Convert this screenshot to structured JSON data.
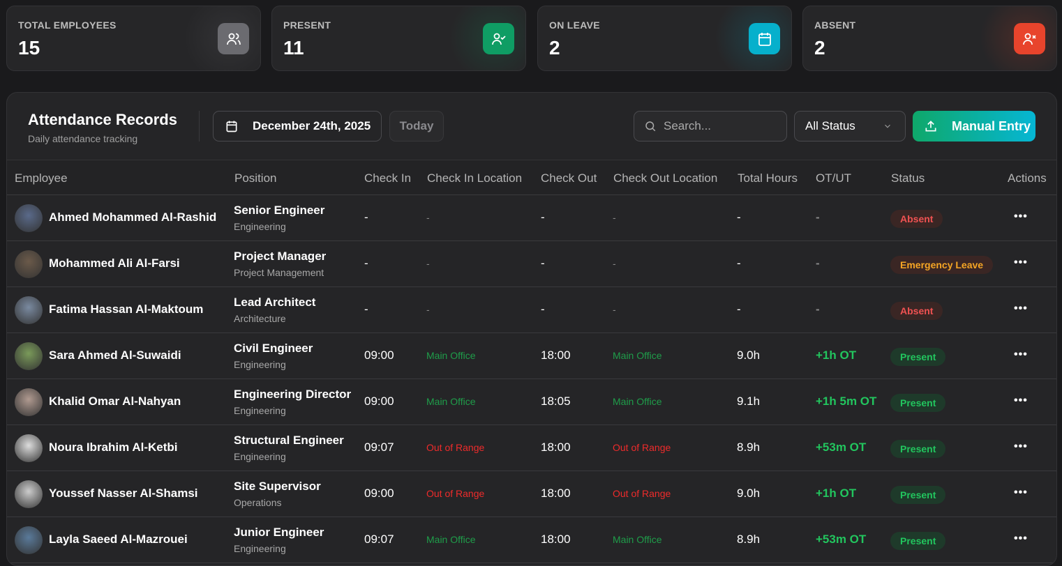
{
  "stats": [
    {
      "label": "TOTAL EMPLOYEES",
      "value": "15",
      "icon": "users-icon",
      "color": "#6b6b70"
    },
    {
      "label": "PRESENT",
      "value": "11",
      "icon": "user-check-icon",
      "color": "#0f9d64"
    },
    {
      "label": "ON LEAVE",
      "value": "2",
      "icon": "calendar-icon",
      "color": "#06b0cc"
    },
    {
      "label": "ABSENT",
      "value": "2",
      "icon": "user-x-icon",
      "color": "#e8442c"
    }
  ],
  "header": {
    "title": "Attendance Records",
    "subtitle": "Daily attendance tracking",
    "date": "December 24th, 2025",
    "today": "Today",
    "search_placeholder": "Search...",
    "status_filter": "All Status",
    "manual_entry": "Manual Entry"
  },
  "columns": [
    "Employee",
    "Position",
    "Check In",
    "Check In Location",
    "Check Out",
    "Check Out Location",
    "Total Hours",
    "OT/UT",
    "Status",
    "Actions"
  ],
  "status_colors": {
    "Absent": "#f05252",
    "Emergency Leave": "#f5a524",
    "Present": "#22c55e"
  },
  "rows": [
    {
      "name": "Ahmed Mohammed Al-Rashid",
      "position": "Senior Engineer",
      "dept": "Engineering",
      "check_in": "-",
      "in_loc": "-",
      "check_out": "-",
      "out_loc": "-",
      "hours": "-",
      "ot": "-",
      "status": "Absent"
    },
    {
      "name": "Mohammed Ali Al-Farsi",
      "position": "Project Manager",
      "dept": "Project Management",
      "check_in": "-",
      "in_loc": "-",
      "check_out": "-",
      "out_loc": "-",
      "hours": "-",
      "ot": "-",
      "status": "Emergency Leave"
    },
    {
      "name": "Fatima Hassan Al-Maktoum",
      "position": "Lead Architect",
      "dept": "Architecture",
      "check_in": "-",
      "in_loc": "-",
      "check_out": "-",
      "out_loc": "-",
      "hours": "-",
      "ot": "-",
      "status": "Absent"
    },
    {
      "name": "Sara Ahmed Al-Suwaidi",
      "position": "Civil Engineer",
      "dept": "Engineering",
      "check_in": "09:00",
      "in_loc": "Main Office",
      "check_out": "18:00",
      "out_loc": "Main Office",
      "hours": "9.0h",
      "ot": "+1h OT",
      "status": "Present"
    },
    {
      "name": "Khalid Omar Al-Nahyan",
      "position": "Engineering Director",
      "dept": "Engineering",
      "check_in": "09:00",
      "in_loc": "Main Office",
      "check_out": "18:05",
      "out_loc": "Main Office",
      "hours": "9.1h",
      "ot": "+1h 5m OT",
      "status": "Present"
    },
    {
      "name": "Noura Ibrahim Al-Ketbi",
      "position": "Structural Engineer",
      "dept": "Engineering",
      "check_in": "09:07",
      "in_loc": "Out of Range",
      "check_out": "18:00",
      "out_loc": "Out of Range",
      "hours": "8.9h",
      "ot": "+53m OT",
      "status": "Present"
    },
    {
      "name": "Youssef Nasser Al-Shamsi",
      "position": "Site Supervisor",
      "dept": "Operations",
      "check_in": "09:00",
      "in_loc": "Out of Range",
      "check_out": "18:00",
      "out_loc": "Out of Range",
      "hours": "9.0h",
      "ot": "+1h OT",
      "status": "Present"
    },
    {
      "name": "Layla Saeed Al-Mazrouei",
      "position": "Junior Engineer",
      "dept": "Engineering",
      "check_in": "09:07",
      "in_loc": "Main Office",
      "check_out": "18:00",
      "out_loc": "Main Office",
      "hours": "8.9h",
      "ot": "+53m OT",
      "status": "Present"
    }
  ]
}
